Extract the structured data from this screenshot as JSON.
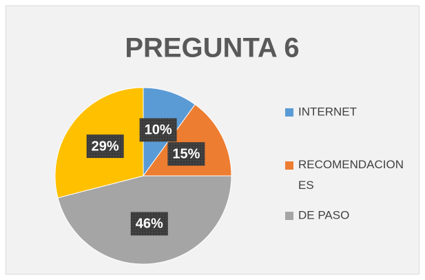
{
  "chart_data": {
    "type": "pie",
    "title": "PREGUNTA 6",
    "categories": [
      "INTERNET",
      "RECOMENDACIONES",
      "DE PASO",
      null
    ],
    "values": [
      10,
      15,
      46,
      29
    ],
    "value_labels": [
      "10%",
      "15%",
      "46%",
      "29%"
    ],
    "colors": [
      "#5b9bd5",
      "#ed7d31",
      "#a5a5a5",
      "#ffc000"
    ],
    "legend": "right"
  }
}
